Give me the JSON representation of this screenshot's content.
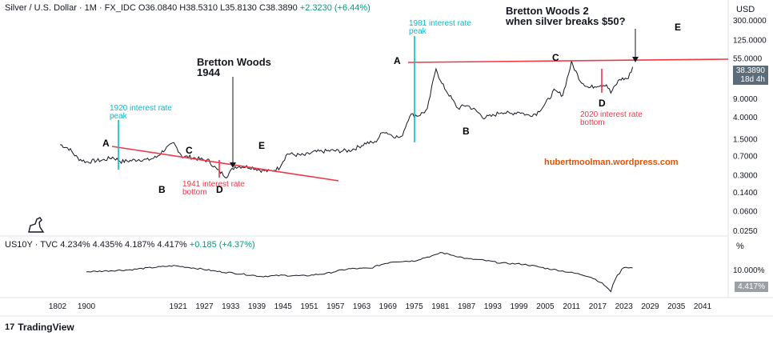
{
  "header": {
    "symbol": "Silver / U.S. Dollar · 1M · FX_IDC",
    "open": "O36.0840",
    "high": "H38.5310",
    "low": "L35.8130",
    "close": "C38.3890",
    "change": "+2.3230 (+6.44%)"
  },
  "currency": "USD",
  "last_price": "38.3890",
  "countdown": "18d 4h",
  "lower_pane": {
    "symbol": "US10Y · TVC",
    "values": "4.234%  4.435%  4.187%  4.417%",
    "change": "+0.185 (+4.37%)",
    "unit": "%",
    "tick": "10.000%",
    "last": "4.417%"
  },
  "annotations": {
    "bw1_title": "Bretton Woods",
    "bw1_year": "1944",
    "bw2_line1": "Bretton Woods 2",
    "bw2_line2": "when silver breaks $50?",
    "rate_1920_line1": "1920 interest rate",
    "rate_1920_line2": "peak",
    "rate_1981_line1": "1981 interest rate",
    "rate_1981_line2": "peak",
    "rate_1941_line1": "1941 interest rate",
    "rate_1941_line2": "bottom",
    "rate_2020_line1": "2020 interest rate",
    "rate_2020_line2": "bottom",
    "website": "hubertmoolman.wordpress.com",
    "letters_left": [
      "A",
      "B",
      "C",
      "D",
      "E"
    ],
    "letters_right": [
      "A",
      "B",
      "C",
      "D",
      "E"
    ]
  },
  "footer": {
    "brand": "TradingView",
    "logo": "17"
  },
  "colors": {
    "up": "#089981",
    "red": "#f23645",
    "cyan": "#00bcd4",
    "orange": "#e65100",
    "series": "#131722"
  },
  "chart_data": {
    "type": "line",
    "scale": "log",
    "y_ticks": [
      "300.0000",
      "125.0000",
      "55.0000",
      "9.0000",
      "4.0000",
      "1.5000",
      "0.7000",
      "0.3000",
      "0.1400",
      "0.0600",
      "0.0250"
    ],
    "x_ticks": [
      "1802",
      "1900",
      "1921",
      "1927",
      "1933",
      "1939",
      "1945",
      "1951",
      "1957",
      "1963",
      "1969",
      "1975",
      "1981",
      "1987",
      "1993",
      "1999",
      "2005",
      "2011",
      "2017",
      "2023",
      "2029",
      "2035",
      "2041"
    ],
    "series": [
      {
        "x": [
          1894,
          1896,
          1898,
          1900,
          1902,
          1904,
          1906,
          1908,
          1910,
          1912,
          1914,
          1916,
          1918,
          1920,
          1922,
          1924,
          1926,
          1928,
          1930,
          1932,
          1934,
          1936,
          1938,
          1940,
          1942,
          1944,
          1946,
          1948,
          1950,
          1952,
          1954,
          1956,
          1958,
          1960,
          1962,
          1964,
          1966,
          1968,
          1970,
          1972,
          1974,
          1976,
          1978,
          1980,
          1981,
          1983,
          1985,
          1987,
          1989,
          1991,
          1993,
          1995,
          1997,
          1999,
          2001,
          2003,
          2005,
          2007,
          2009,
          2011,
          2013,
          2015,
          2017,
          2019,
          2020,
          2022,
          2024,
          2025
        ],
        "y": [
          1.2,
          1.0,
          0.65,
          0.55,
          0.58,
          0.6,
          0.68,
          0.56,
          0.58,
          0.62,
          0.6,
          0.68,
          0.98,
          1.25,
          0.7,
          0.68,
          0.62,
          0.58,
          0.38,
          0.29,
          0.45,
          0.45,
          0.43,
          0.38,
          0.36,
          0.42,
          0.8,
          0.75,
          0.74,
          0.85,
          0.88,
          0.91,
          0.9,
          0.91,
          1.05,
          1.29,
          1.3,
          2.2,
          1.8,
          1.6,
          4.5,
          4.4,
          5.6,
          38,
          20,
          11,
          6,
          7,
          5.5,
          4.0,
          4.3,
          5.2,
          4.7,
          5.2,
          4.4,
          4.8,
          7.3,
          13,
          11,
          46,
          21,
          15,
          17,
          17.5,
          12,
          22,
          23,
          38.389
        ]
      }
    ],
    "lower_series": {
      "name": "US10Y",
      "x": [
        1900,
        1910,
        1920,
        1930,
        1940,
        1945,
        1950,
        1955,
        1960,
        1965,
        1970,
        1975,
        1980,
        1981,
        1984,
        1987,
        1990,
        1995,
        2000,
        2005,
        2010,
        2015,
        2020,
        2022,
        2023,
        2025
      ],
      "y": [
        3.2,
        3.8,
        5.3,
        3.3,
        2.2,
        2.4,
        2.3,
        2.8,
        4.1,
        4.3,
        7.4,
        7.9,
        12.8,
        15.8,
        12.4,
        9.4,
        8.6,
        6.6,
        6.0,
        4.3,
        3.2,
        2.2,
        0.6,
        2.9,
        4.8,
        4.417
      ]
    }
  }
}
